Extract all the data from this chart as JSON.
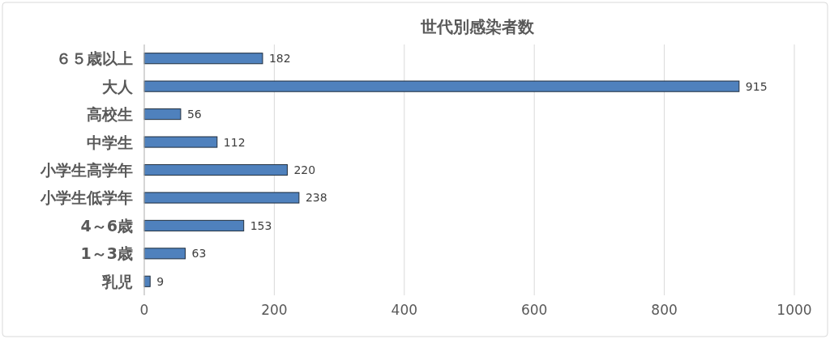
{
  "chart_data": {
    "type": "bar",
    "orientation": "horizontal",
    "title": "世代別感染者数",
    "categories": [
      "６５歳以上",
      "大人",
      "高校生",
      "中学生",
      "小学生高学年",
      "小学生低学年",
      "4～6歳",
      "1～3歳",
      "乳児"
    ],
    "values": [
      182,
      915,
      56,
      112,
      220,
      238,
      153,
      63,
      9
    ],
    "color": "#4f81bd",
    "xlim": [
      0,
      1000
    ],
    "xticks": [
      0,
      200,
      400,
      600,
      800,
      1000
    ],
    "grid": "x",
    "data_labels": true
  }
}
